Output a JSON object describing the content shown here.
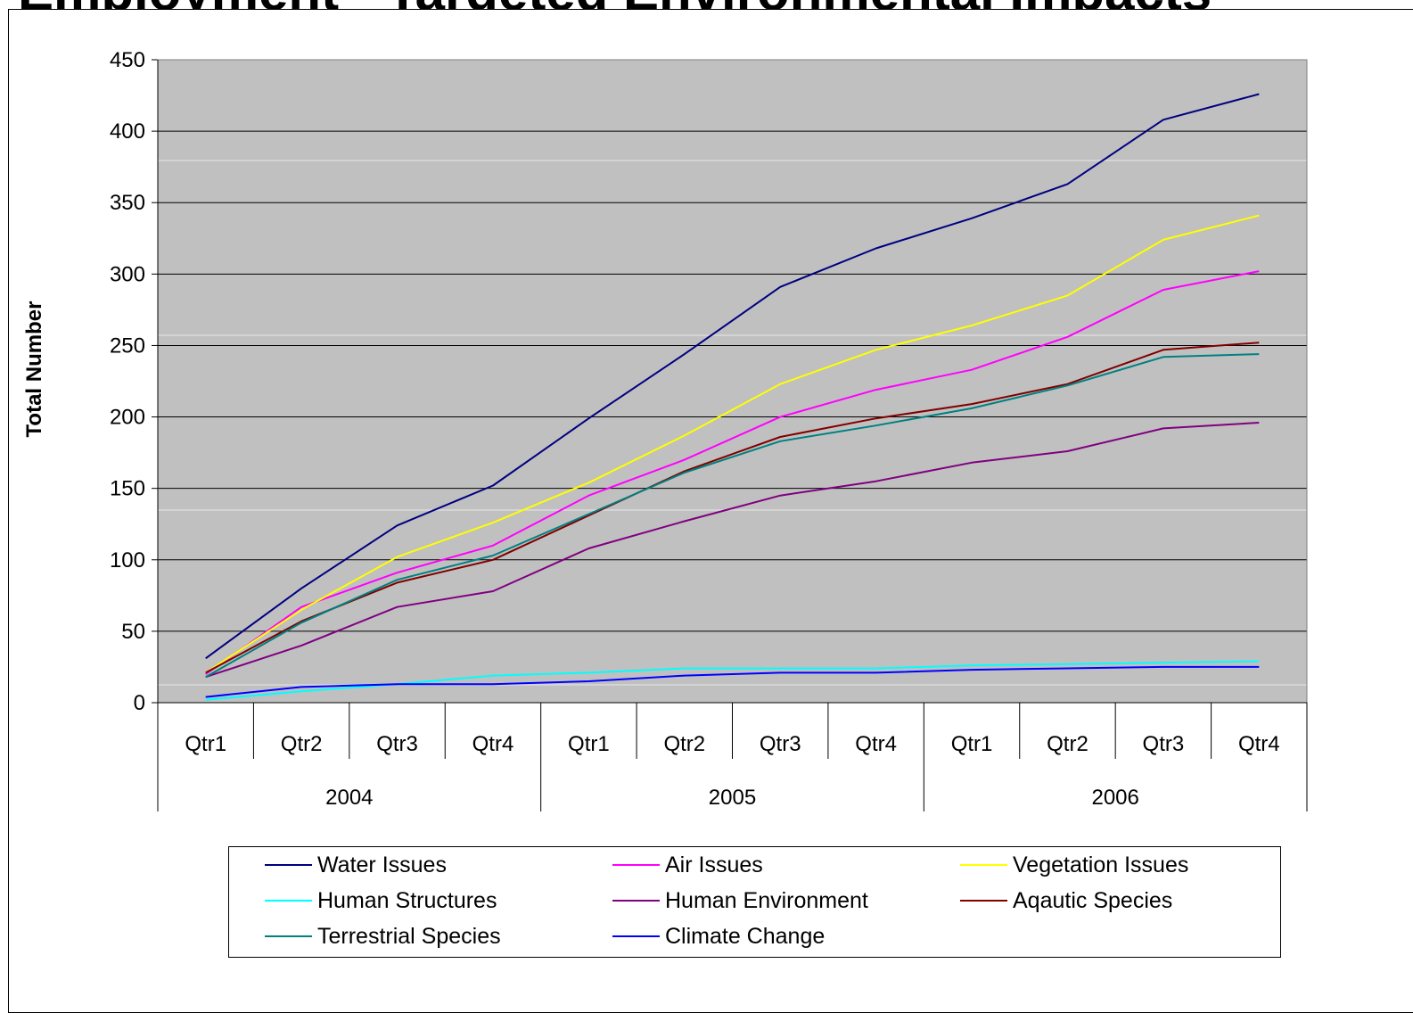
{
  "title": "Employment - Targeted Environmental Impacts",
  "chart_data": {
    "type": "line",
    "title": "",
    "xlabel": "",
    "ylabel": "Total Number",
    "ylim": [
      0,
      450
    ],
    "yticks": [
      0,
      50,
      100,
      150,
      200,
      250,
      300,
      350,
      400,
      450
    ],
    "grid": true,
    "legend_position": "bottom",
    "groups": [
      {
        "label": "2004",
        "categories": [
          "Qtr1",
          "Qtr2",
          "Qtr3",
          "Qtr4"
        ]
      },
      {
        "label": "2005",
        "categories": [
          "Qtr1",
          "Qtr2",
          "Qtr3",
          "Qtr4"
        ]
      },
      {
        "label": "2006",
        "categories": [
          "Qtr1",
          "Qtr2",
          "Qtr3",
          "Qtr4"
        ]
      }
    ],
    "series": [
      {
        "name": "Water Issues",
        "color": "#000080",
        "values": [
          31,
          80,
          124,
          152,
          199,
          244,
          291,
          318,
          339,
          363,
          408,
          426
        ]
      },
      {
        "name": "Air Issues",
        "color": "#FF00FF",
        "values": [
          20,
          67,
          91,
          110,
          145,
          170,
          200,
          219,
          233,
          256,
          289,
          302
        ]
      },
      {
        "name": "Vegetation Issues",
        "color": "#FFFF00",
        "values": [
          21,
          65,
          102,
          126,
          154,
          187,
          223,
          247,
          264,
          285,
          324,
          341
        ]
      },
      {
        "name": "Human Structures",
        "color": "#00FFFF",
        "values": [
          2,
          8,
          13,
          19,
          21,
          24,
          24,
          24,
          26,
          27,
          28,
          29
        ]
      },
      {
        "name": "Human Environment",
        "color": "#800080",
        "values": [
          18,
          40,
          67,
          78,
          108,
          127,
          145,
          155,
          168,
          176,
          192,
          196
        ]
      },
      {
        "name": "Aqautic Species",
        "color": "#800000",
        "values": [
          21,
          57,
          84,
          100,
          131,
          162,
          186,
          199,
          209,
          223,
          247,
          252
        ]
      },
      {
        "name": "Terrestrial Species",
        "color": "#008080",
        "values": [
          18,
          56,
          86,
          103,
          132,
          161,
          183,
          194,
          206,
          222,
          242,
          244
        ]
      },
      {
        "name": "Climate Change",
        "color": "#0000FF",
        "values": [
          4,
          11,
          13,
          13,
          15,
          19,
          21,
          21,
          23,
          24,
          25,
          25
        ]
      }
    ]
  }
}
